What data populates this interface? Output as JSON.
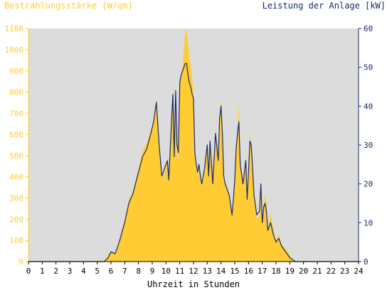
{
  "chart_data": {
    "type": "area",
    "xlabel": "Uhrzeit in Stunden",
    "ylabel_left": "Bestrahlungsstärke [W/qm]",
    "ylabel_right": "Leistung der Anlage [kW]",
    "x_range": [
      0,
      24
    ],
    "y_left_range": [
      0,
      1100
    ],
    "y_right_range": [
      0,
      60
    ],
    "x_ticks": [
      "0",
      "1",
      "2",
      "3",
      "4",
      "5",
      "6",
      "7",
      "8",
      "9",
      "10",
      "11",
      "12",
      "13",
      "14",
      "15",
      "16",
      "17",
      "18",
      "19",
      "20",
      "21",
      "22",
      "23",
      "24"
    ],
    "y_left_ticks": [
      "0",
      "100",
      "200",
      "300",
      "400",
      "500",
      "600",
      "700",
      "800",
      "900",
      "1000",
      "1100"
    ],
    "y_right_ticks": [
      "0",
      "10",
      "20",
      "30",
      "40",
      "50",
      "60"
    ],
    "grid": false,
    "colors": {
      "plot_bg": "#dcdcdc",
      "irradiance": "#ffcc33",
      "power": "#1a2a6e",
      "left_axis_text": "#ffcc33",
      "right_axis_text": "#1a2a6e"
    },
    "series": [
      {
        "name": "Bestrahlungsstärke [W/qm]",
        "axis": "left",
        "style": "area",
        "x": [
          0,
          5.5,
          5.8,
          6.0,
          6.3,
          6.6,
          7.0,
          7.3,
          7.6,
          8.0,
          8.3,
          8.6,
          8.9,
          9.1,
          9.3,
          9.5,
          9.7,
          9.9,
          10.1,
          10.2,
          10.4,
          10.5,
          10.6,
          10.7,
          10.8,
          10.9,
          11.0,
          11.1,
          11.2,
          11.3,
          11.4,
          11.5,
          11.6,
          11.7,
          11.8,
          11.9,
          12.0,
          12.1,
          12.2,
          12.3,
          12.4,
          12.5,
          12.6,
          12.8,
          13.0,
          13.1,
          13.2,
          13.4,
          13.6,
          13.8,
          13.9,
          14.0,
          14.1,
          14.2,
          14.3,
          14.4,
          14.6,
          14.8,
          14.9,
          15.0,
          15.1,
          15.2,
          15.3,
          15.4,
          15.6,
          15.8,
          15.9,
          16.0,
          16.1,
          16.2,
          16.3,
          16.4,
          16.6,
          16.8,
          16.9,
          17.0,
          17.1,
          17.2,
          17.3,
          17.4,
          17.6,
          17.8,
          18.0,
          18.2,
          18.4,
          18.6,
          18.8,
          19.0,
          19.2,
          19.4,
          24
        ],
        "y": [
          0,
          0,
          30,
          50,
          40,
          100,
          200,
          290,
          330,
          440,
          520,
          560,
          620,
          660,
          770,
          560,
          390,
          420,
          480,
          370,
          660,
          830,
          460,
          800,
          500,
          480,
          850,
          880,
          920,
          1000,
          1080,
          1100,
          1020,
          960,
          920,
          870,
          780,
          500,
          450,
          390,
          460,
          400,
          380,
          440,
          550,
          400,
          570,
          380,
          610,
          480,
          700,
          760,
          600,
          400,
          380,
          360,
          320,
          230,
          290,
          380,
          530,
          620,
          740,
          470,
          380,
          480,
          300,
          420,
          610,
          550,
          440,
          300,
          200,
          220,
          370,
          180,
          230,
          320,
          280,
          140,
          230,
          160,
          90,
          130,
          80,
          70,
          50,
          30,
          10,
          0,
          0
        ]
      },
      {
        "name": "Leistung der Anlage [kW]",
        "axis": "right",
        "style": "line",
        "x": [
          0,
          5.5,
          5.8,
          6.0,
          6.3,
          6.6,
          7.0,
          7.3,
          7.6,
          8.0,
          8.3,
          8.6,
          8.9,
          9.1,
          9.3,
          9.5,
          9.7,
          9.9,
          10.1,
          10.2,
          10.4,
          10.5,
          10.6,
          10.7,
          10.8,
          10.9,
          11.0,
          11.1,
          11.2,
          11.3,
          11.4,
          11.5,
          11.6,
          11.7,
          11.8,
          11.9,
          12.0,
          12.1,
          12.2,
          12.3,
          12.4,
          12.5,
          12.6,
          12.8,
          13.0,
          13.1,
          13.2,
          13.4,
          13.6,
          13.8,
          13.9,
          14.0,
          14.1,
          14.2,
          14.3,
          14.4,
          14.6,
          14.8,
          14.9,
          15.0,
          15.1,
          15.2,
          15.3,
          15.4,
          15.6,
          15.8,
          15.9,
          16.0,
          16.1,
          16.2,
          16.3,
          16.4,
          16.6,
          16.8,
          16.9,
          17.0,
          17.1,
          17.2,
          17.3,
          17.4,
          17.6,
          17.8,
          18.0,
          18.2,
          18.4,
          18.6,
          18.8,
          19.0,
          19.2,
          19.4,
          24
        ],
        "y": [
          0,
          0,
          1,
          2.5,
          2,
          5,
          10,
          15,
          17.5,
          23,
          27,
          29,
          33,
          36,
          41,
          30,
          22,
          24,
          26,
          21,
          36,
          43,
          27,
          44,
          30,
          28,
          46,
          48,
          49,
          50,
          51,
          51,
          48,
          46,
          45,
          43,
          42,
          28,
          25,
          23,
          25,
          22,
          20,
          24,
          30,
          22,
          31,
          20,
          33,
          26,
          37,
          40,
          33,
          22,
          20,
          19,
          17,
          12,
          16,
          21,
          29,
          33,
          36,
          25,
          20,
          26,
          16,
          23,
          31,
          30,
          24,
          17,
          12,
          13,
          20,
          10,
          14,
          15,
          13,
          8,
          10,
          7,
          5,
          6,
          4,
          3,
          2,
          1,
          0.5,
          0,
          0
        ]
      }
    ]
  }
}
